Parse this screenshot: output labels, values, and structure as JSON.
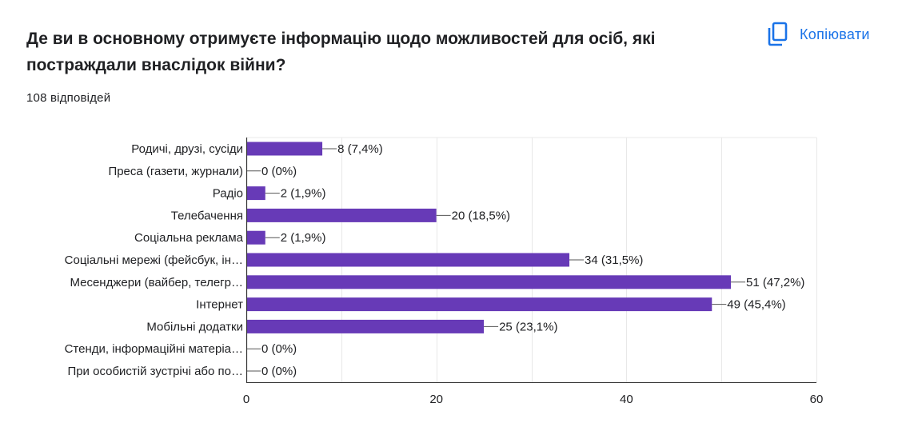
{
  "header": {
    "title": "Де ви в основному отримуєте інформацію щодо можливостей для осіб, які постраждали внаслідок війни?",
    "responses": "108 відповідей",
    "copy_label": "Копіювати",
    "copy_icon": "copy-icon"
  },
  "colors": {
    "bar": "#673ab7",
    "accent": "#1a73e8",
    "grid": "#e8e8e8",
    "axis": "#333333",
    "text": "#202124"
  },
  "chart_data": {
    "type": "bar",
    "orientation": "horizontal",
    "categories": [
      "Родичі, друзі, сусіди",
      "Преса (газети, журнали)",
      "Радіо",
      "Телебачення",
      "Соціальна реклама",
      "Соціальні мережі (фейсбук, ін…",
      "Месенджери (вайбер, телегр…",
      "Інтернет",
      "Мобільні додатки",
      "Стенди, інформаційні матеріа…",
      "При особистій зустрічі або по…"
    ],
    "values": [
      8,
      0,
      2,
      20,
      2,
      34,
      51,
      49,
      25,
      0,
      0
    ],
    "data_labels": [
      "8 (7,4%)",
      "0 (0%)",
      "2 (1,9%)",
      "20 (18,5%)",
      "2 (1,9%)",
      "34 (31,5%)",
      "51 (47,2%)",
      "49 (45,4%)",
      "25 (23,1%)",
      "0 (0%)",
      "0 (0%)"
    ],
    "xlim": [
      0,
      60
    ],
    "xticks": [
      "0",
      "20",
      "40",
      "60"
    ],
    "xtick_values": [
      0,
      20,
      40,
      60
    ],
    "grid": true,
    "legend": "none"
  }
}
